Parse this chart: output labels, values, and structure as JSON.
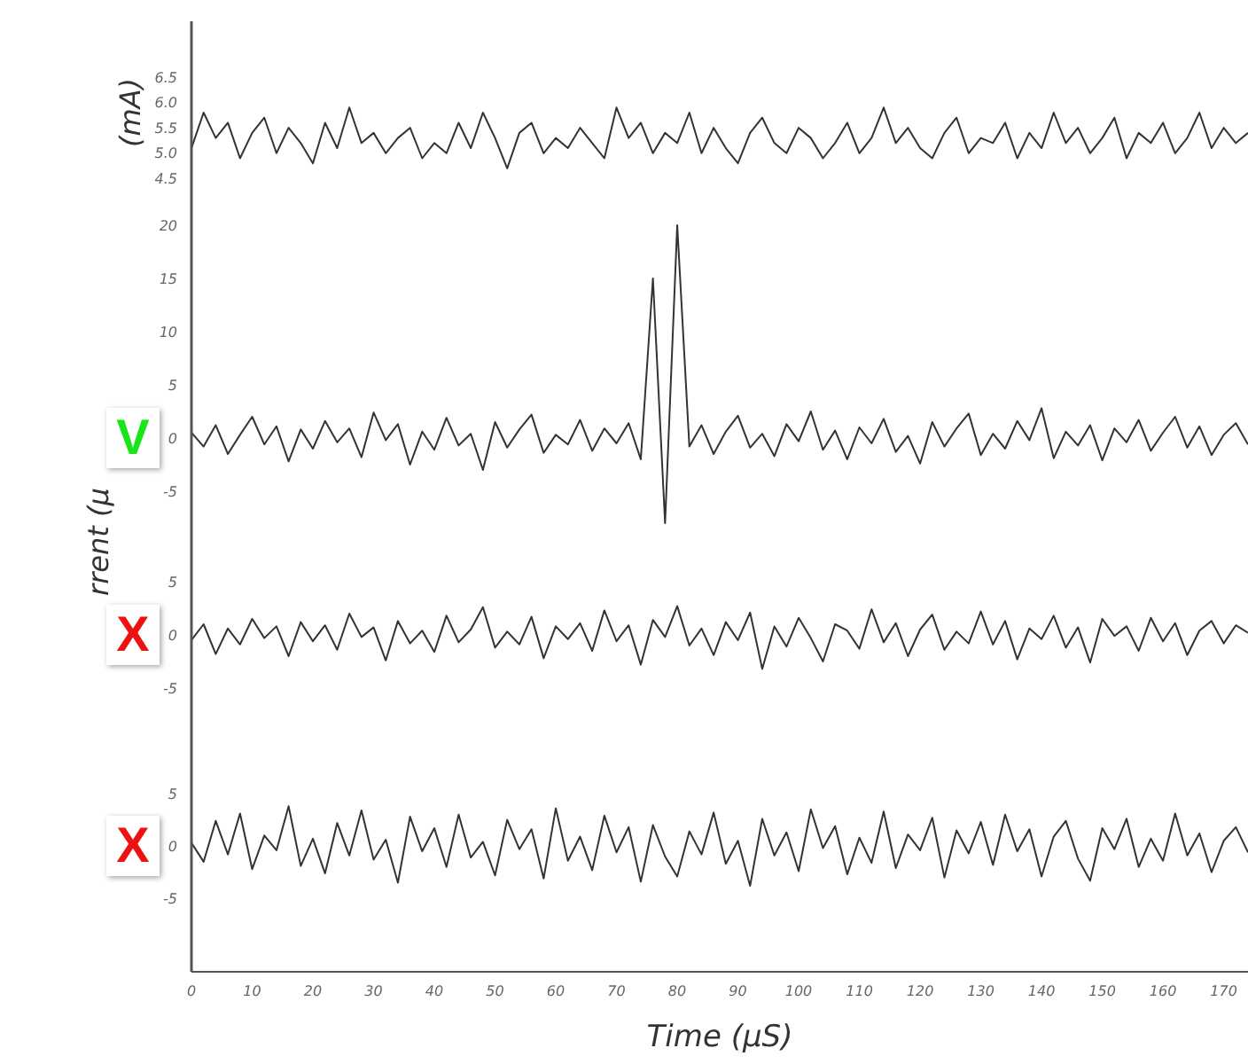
{
  "chart_data": [
    {
      "type": "line",
      "ylabel": "(mA)",
      "tick_labels": "y",
      "xlim": [
        0,
        174
      ],
      "ylim": [
        4.0,
        7.6
      ],
      "yticks": [
        4.5,
        {
          "value": 5,
          "label": "5.0"
        },
        5.5,
        {
          "value": 6,
          "label": "6.0"
        },
        6.5
      ],
      "xticks": [
        0,
        10,
        20,
        30,
        40,
        50,
        60,
        70,
        80,
        90,
        100,
        110,
        120,
        130,
        140,
        150,
        160,
        170
      ],
      "x": [
        0,
        2,
        4,
        6,
        8,
        10,
        12,
        14,
        16,
        18,
        20,
        22,
        24,
        26,
        28,
        30,
        32,
        34,
        36,
        38,
        40,
        42,
        44,
        46,
        48,
        50,
        52,
        54,
        56,
        58,
        60,
        62,
        64,
        66,
        68,
        70,
        72,
        74,
        76,
        78,
        80,
        82,
        84,
        86,
        88,
        90,
        92,
        94,
        96,
        98,
        100,
        102,
        104,
        106,
        108,
        110,
        112,
        114,
        116,
        118,
        120,
        122,
        124,
        126,
        128,
        130,
        132,
        134,
        136,
        138,
        140,
        142,
        144,
        146,
        148,
        150,
        152,
        154,
        156,
        158,
        160,
        162,
        164,
        166,
        168,
        170,
        172,
        174
      ],
      "series": [
        {
          "color": "#333333",
          "values": [
            5.1,
            5.8,
            5.3,
            5.6,
            4.9,
            5.4,
            5.7,
            5.0,
            5.5,
            5.2,
            4.8,
            5.6,
            5.1,
            5.9,
            5.2,
            5.4,
            5.0,
            5.3,
            5.5,
            4.9,
            5.2,
            5.0,
            5.6,
            5.1,
            5.8,
            5.3,
            4.7,
            5.4,
            5.6,
            5.0,
            5.3,
            5.1,
            5.5,
            5.2,
            4.9,
            5.9,
            5.3,
            5.6,
            5.0,
            5.4,
            5.2,
            5.8,
            5.0,
            5.5,
            5.1,
            4.8,
            5.4,
            5.7,
            5.2,
            5.0,
            5.5,
            5.3,
            4.9,
            5.2,
            5.6,
            5.0,
            5.3,
            5.9,
            5.2,
            5.5,
            5.1,
            4.9,
            5.4,
            5.7,
            5.0,
            5.3,
            5.2,
            5.6,
            4.9,
            5.4,
            5.1,
            5.8,
            5.2,
            5.5,
            5.0,
            5.3,
            5.7,
            4.9,
            5.4,
            5.2,
            5.6,
            5.0,
            5.3,
            5.8,
            5.1,
            5.5,
            5.2,
            5.4
          ]
        }
      ]
    },
    {
      "type": "line",
      "ylabel": "rrent (μ",
      "tick_labels": "y",
      "annotations": [
        "V"
      ],
      "xlim": [
        0,
        174
      ],
      "ylim": [
        -8.5,
        22
      ],
      "yticks": [
        -5,
        0,
        5,
        10,
        15,
        20
      ],
      "xticks": [
        0,
        10,
        20,
        30,
        40,
        50,
        60,
        70,
        80,
        90,
        100,
        110,
        120,
        130,
        140,
        150,
        160,
        170
      ],
      "x": [
        0,
        2,
        4,
        6,
        8,
        10,
        12,
        14,
        16,
        18,
        20,
        22,
        24,
        26,
        28,
        30,
        32,
        34,
        36,
        38,
        40,
        42,
        44,
        46,
        48,
        50,
        52,
        54,
        56,
        58,
        60,
        62,
        64,
        66,
        68,
        70,
        72,
        74,
        76,
        78,
        80,
        82,
        84,
        86,
        88,
        90,
        92,
        94,
        96,
        98,
        100,
        102,
        104,
        106,
        108,
        110,
        112,
        114,
        116,
        118,
        120,
        122,
        124,
        126,
        128,
        130,
        132,
        134,
        136,
        138,
        140,
        142,
        144,
        146,
        148,
        150,
        152,
        154,
        156,
        158,
        160,
        162,
        164,
        166,
        168,
        170,
        172,
        174
      ],
      "series": [
        {
          "color": "#333333",
          "values": [
            0.5,
            -0.8,
            1.2,
            -1.5,
            0.3,
            2.0,
            -0.6,
            1.1,
            -2.2,
            0.8,
            -1.0,
            1.6,
            -0.4,
            0.9,
            -1.8,
            2.4,
            -0.2,
            1.3,
            -2.5,
            0.6,
            -1.1,
            1.9,
            -0.7,
            0.4,
            -3.0,
            1.5,
            -0.9,
            0.8,
            2.2,
            -1.4,
            0.3,
            -0.6,
            1.7,
            -1.2,
            0.9,
            -0.5,
            1.4,
            -2.0,
            15,
            -8,
            20,
            -0.8,
            1.2,
            -1.5,
            0.6,
            2.1,
            -0.9,
            0.4,
            -1.7,
            1.3,
            -0.3,
            2.5,
            -1.1,
            0.7,
            -2.0,
            1.0,
            -0.5,
            1.8,
            -1.3,
            0.2,
            -2.4,
            1.5,
            -0.8,
            0.9,
            2.3,
            -1.6,
            0.4,
            -1.0,
            1.6,
            -0.2,
            2.8,
            -1.9,
            0.6,
            -0.7,
            1.2,
            -2.1,
            0.9,
            -0.4,
            1.7,
            -1.2,
            0.5,
            2.0,
            -0.9,
            1.1,
            -1.6,
            0.3,
            1.4,
            -0.6
          ]
        }
      ]
    },
    {
      "type": "line",
      "tick_labels": "y",
      "annotations": [
        "X"
      ],
      "xlim": [
        0,
        174
      ],
      "ylim": [
        -10,
        10
      ],
      "yticks": [
        -5,
        0,
        5
      ],
      "xticks": [
        0,
        10,
        20,
        30,
        40,
        50,
        60,
        70,
        80,
        90,
        100,
        110,
        120,
        130,
        140,
        150,
        160,
        170
      ],
      "x": [
        0,
        2,
        4,
        6,
        8,
        10,
        12,
        14,
        16,
        18,
        20,
        22,
        24,
        26,
        28,
        30,
        32,
        34,
        36,
        38,
        40,
        42,
        44,
        46,
        48,
        50,
        52,
        54,
        56,
        58,
        60,
        62,
        64,
        66,
        68,
        70,
        72,
        74,
        76,
        78,
        80,
        82,
        84,
        86,
        88,
        90,
        92,
        94,
        96,
        98,
        100,
        102,
        104,
        106,
        108,
        110,
        112,
        114,
        116,
        118,
        120,
        122,
        124,
        126,
        128,
        130,
        132,
        134,
        136,
        138,
        140,
        142,
        144,
        146,
        148,
        150,
        152,
        154,
        156,
        158,
        160,
        162,
        164,
        166,
        168,
        170,
        172,
        174
      ],
      "series": [
        {
          "color": "#333333",
          "values": [
            -0.5,
            1.0,
            -1.8,
            0.6,
            -0.9,
            1.5,
            -0.3,
            0.8,
            -2.0,
            1.2,
            -0.6,
            0.9,
            -1.4,
            2.0,
            -0.2,
            0.7,
            -2.4,
            1.3,
            -0.8,
            0.4,
            -1.6,
            1.8,
            -0.7,
            0.5,
            2.6,
            -1.2,
            0.3,
            -0.9,
            1.7,
            -2.2,
            0.8,
            -0.4,
            1.1,
            -1.5,
            2.3,
            -0.6,
            0.9,
            -2.8,
            1.4,
            -0.2,
            2.7,
            -1.0,
            0.6,
            -1.9,
            1.2,
            -0.5,
            2.1,
            -3.2,
            0.8,
            -1.1,
            1.6,
            -0.3,
            -2.5,
            1.0,
            0.4,
            -1.3,
            2.4,
            -0.7,
            1.1,
            -2.0,
            0.5,
            1.9,
            -1.4,
            0.3,
            -0.8,
            2.2,
            -0.9,
            1.3,
            -2.3,
            0.6,
            -0.4,
            1.8,
            -1.2,
            0.7,
            -2.6,
            1.5,
            -0.1,
            0.8,
            -1.5,
            1.6,
            -0.6,
            1.1,
            -1.9,
            0.4,
            1.3,
            -0.8,
            0.9,
            0.2
          ]
        }
      ]
    },
    {
      "type": "line",
      "xlabel": "Time (μS)",
      "annotations": [
        "X"
      ],
      "xlim": [
        0,
        174
      ],
      "ylim": [
        -12,
        10
      ],
      "yticks": [
        -5,
        0,
        5
      ],
      "xticks": [
        0,
        10,
        20,
        30,
        40,
        50,
        60,
        70,
        80,
        90,
        100,
        110,
        120,
        130,
        140,
        150,
        160,
        170
      ],
      "x": [
        0,
        2,
        4,
        6,
        8,
        10,
        12,
        14,
        16,
        18,
        20,
        22,
        24,
        26,
        28,
        30,
        32,
        34,
        36,
        38,
        40,
        42,
        44,
        46,
        48,
        50,
        52,
        54,
        56,
        58,
        60,
        62,
        64,
        66,
        68,
        70,
        72,
        74,
        76,
        78,
        80,
        82,
        84,
        86,
        88,
        90,
        92,
        94,
        96,
        98,
        100,
        102,
        104,
        106,
        108,
        110,
        112,
        114,
        116,
        118,
        120,
        122,
        124,
        126,
        128,
        130,
        132,
        134,
        136,
        138,
        140,
        142,
        144,
        146,
        148,
        150,
        152,
        154,
        156,
        158,
        160,
        162,
        164,
        166,
        168,
        170,
        172,
        174
      ],
      "series": [
        {
          "color": "#333333",
          "values": [
            0.3,
            -1.5,
            2.4,
            -0.8,
            3.1,
            -2.2,
            1.0,
            -0.4,
            3.8,
            -1.9,
            0.7,
            -2.6,
            2.2,
            -0.9,
            3.4,
            -1.3,
            0.6,
            -3.5,
            2.8,
            -0.5,
            1.7,
            -2.0,
            3.0,
            -1.1,
            0.4,
            -2.8,
            2.5,
            -0.3,
            1.6,
            -3.1,
            3.6,
            -1.4,
            0.9,
            -2.3,
            2.9,
            -0.6,
            1.8,
            -3.4,
            2.0,
            -1.0,
            -2.9,
            1.4,
            -0.8,
            3.2,
            -1.7,
            0.5,
            -3.8,
            2.6,
            -0.9,
            1.3,
            -2.4,
            3.5,
            -0.2,
            1.9,
            -2.7,
            0.8,
            -1.6,
            3.3,
            -2.1,
            1.1,
            -0.4,
            2.7,
            -3.0,
            1.5,
            -0.7,
            2.3,
            -1.8,
            3.0,
            -0.5,
            1.6,
            -2.9,
            0.9,
            2.4,
            -1.2,
            -3.3,
            1.7,
            -0.3,
            2.6,
            -2.0,
            0.7,
            -1.4,
            3.1,
            -0.9,
            1.2,
            -2.5,
            0.5,
            1.8,
            -0.6
          ]
        }
      ]
    }
  ]
}
